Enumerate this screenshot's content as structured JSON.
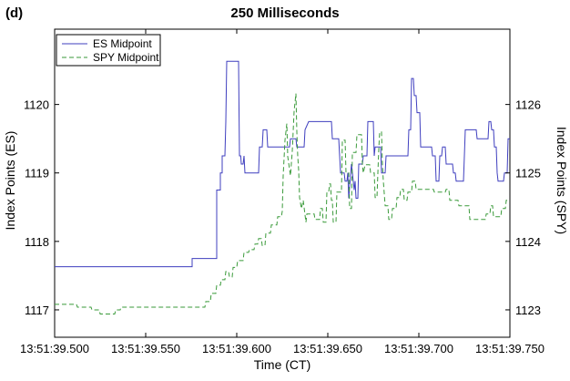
{
  "chart_data": {
    "type": "line",
    "panel_label": "(d)",
    "title": "250 Milliseconds",
    "xlabel": "Time (CT)",
    "ylabel_left": "Index Points (ES)",
    "ylabel_right": "Index Points (SPY)",
    "xlim": [
      13.5,
      13.75
    ],
    "ylim_left": [
      1116.6,
      1121.1
    ],
    "ylim_right": [
      1122.6,
      1127.1
    ],
    "x_ticks": [
      {
        "value": 13.5,
        "label": "13:51:39.500"
      },
      {
        "value": 13.55,
        "label": "13:51:39.550"
      },
      {
        "value": 13.6,
        "label": "13:51:39.600"
      },
      {
        "value": 13.65,
        "label": "13:51:39.650"
      },
      {
        "value": 13.7,
        "label": "13:51:39.700"
      },
      {
        "value": 13.75,
        "label": "13:51:39.750"
      }
    ],
    "y_ticks_left": [
      {
        "value": 1117,
        "label": "1117"
      },
      {
        "value": 1118,
        "label": "1118"
      },
      {
        "value": 1119,
        "label": "1119"
      },
      {
        "value": 1120,
        "label": "1120"
      }
    ],
    "y_ticks_right": [
      {
        "value": 1123,
        "label": "1123"
      },
      {
        "value": 1124,
        "label": "1124"
      },
      {
        "value": 1125,
        "label": "1125"
      },
      {
        "value": 1126,
        "label": "1126"
      }
    ],
    "legend_position": "top-left",
    "series": [
      {
        "name": "ES Midpoint",
        "axis": "left",
        "color": "#3f3fbf",
        "style": "solid",
        "points": [
          [
            13.5,
            1117.63
          ],
          [
            13.5755,
            1117.63
          ],
          [
            13.5755,
            1117.75
          ],
          [
            13.589,
            1117.75
          ],
          [
            13.589,
            1118.75
          ],
          [
            13.591,
            1118.75
          ],
          [
            13.591,
            1119.0
          ],
          [
            13.592,
            1119.0
          ],
          [
            13.592,
            1119.25
          ],
          [
            13.5935,
            1119.25
          ],
          [
            13.594,
            1119.75
          ],
          [
            13.5945,
            1120.63
          ],
          [
            13.601,
            1120.63
          ],
          [
            13.6015,
            1119.25
          ],
          [
            13.6022,
            1119.25
          ],
          [
            13.6025,
            1119.13
          ],
          [
            13.6035,
            1119.13
          ],
          [
            13.604,
            1119.25
          ],
          [
            13.6045,
            1119.0
          ],
          [
            13.612,
            1119.0
          ],
          [
            13.6125,
            1119.38
          ],
          [
            13.614,
            1119.38
          ],
          [
            13.6145,
            1119.63
          ],
          [
            13.6165,
            1119.63
          ],
          [
            13.617,
            1119.38
          ],
          [
            13.629,
            1119.38
          ],
          [
            13.6295,
            1119.5
          ],
          [
            13.6325,
            1119.5
          ],
          [
            13.633,
            1119.38
          ],
          [
            13.637,
            1119.38
          ],
          [
            13.6375,
            1119.63
          ],
          [
            13.6395,
            1119.75
          ],
          [
            13.652,
            1119.75
          ],
          [
            13.6525,
            1119.5
          ],
          [
            13.656,
            1119.5
          ],
          [
            13.6565,
            1119.25
          ],
          [
            13.657,
            1119.0
          ],
          [
            13.659,
            1119.0
          ],
          [
            13.6595,
            1118.88
          ],
          [
            13.6605,
            1118.88
          ],
          [
            13.661,
            1119.0
          ],
          [
            13.6615,
            1118.63
          ],
          [
            13.663,
            1119.13
          ],
          [
            13.664,
            1118.88
          ],
          [
            13.6645,
            1118.75
          ],
          [
            13.665,
            1118.88
          ],
          [
            13.6655,
            1118.63
          ],
          [
            13.6665,
            1118.63
          ],
          [
            13.667,
            1119.13
          ],
          [
            13.669,
            1119.13
          ],
          [
            13.6695,
            1119.25
          ],
          [
            13.6715,
            1119.25
          ],
          [
            13.672,
            1119.75
          ],
          [
            13.675,
            1119.75
          ],
          [
            13.6755,
            1119.25
          ],
          [
            13.676,
            1119.38
          ],
          [
            13.679,
            1119.38
          ],
          [
            13.6795,
            1119.0
          ],
          [
            13.6815,
            1119.0
          ],
          [
            13.682,
            1119.25
          ],
          [
            13.694,
            1119.25
          ],
          [
            13.6945,
            1119.63
          ],
          [
            13.6955,
            1119.63
          ],
          [
            13.696,
            1120.38
          ],
          [
            13.697,
            1120.38
          ],
          [
            13.6975,
            1120.13
          ],
          [
            13.6985,
            1120.13
          ],
          [
            13.699,
            1119.88
          ],
          [
            13.7005,
            1119.88
          ],
          [
            13.701,
            1119.38
          ],
          [
            13.707,
            1119.38
          ],
          [
            13.7075,
            1119.25
          ],
          [
            13.709,
            1119.25
          ],
          [
            13.7095,
            1118.88
          ],
          [
            13.711,
            1118.88
          ],
          [
            13.7115,
            1119.25
          ],
          [
            13.7125,
            1119.25
          ],
          [
            13.713,
            1119.38
          ],
          [
            13.7145,
            1119.38
          ],
          [
            13.715,
            1119.13
          ],
          [
            13.7185,
            1119.13
          ],
          [
            13.719,
            1119.0
          ],
          [
            13.72,
            1119.0
          ],
          [
            13.7205,
            1118.88
          ],
          [
            13.7245,
            1118.88
          ],
          [
            13.725,
            1119.25
          ],
          [
            13.7255,
            1119.63
          ],
          [
            13.7315,
            1119.63
          ],
          [
            13.732,
            1119.5
          ],
          [
            13.738,
            1119.5
          ],
          [
            13.7385,
            1119.75
          ],
          [
            13.7395,
            1119.75
          ],
          [
            13.74,
            1119.63
          ],
          [
            13.741,
            1119.63
          ],
          [
            13.7415,
            1119.38
          ],
          [
            13.7425,
            1119.38
          ],
          [
            13.743,
            1119.0
          ],
          [
            13.7435,
            1118.88
          ],
          [
            13.7465,
            1118.88
          ],
          [
            13.747,
            1119.0
          ],
          [
            13.7485,
            1119.0
          ],
          [
            13.749,
            1119.5
          ],
          [
            13.75,
            1119.5
          ]
        ]
      },
      {
        "name": "SPY Midpoint",
        "axis": "right",
        "color": "#3a9a3a",
        "style": "dashed",
        "points": [
          [
            13.5,
            1123.08
          ],
          [
            13.512,
            1123.08
          ],
          [
            13.5125,
            1123.04
          ],
          [
            13.52,
            1123.04
          ],
          [
            13.5205,
            1123.0
          ],
          [
            13.5245,
            1123.0
          ],
          [
            13.525,
            1122.94
          ],
          [
            13.533,
            1122.94
          ],
          [
            13.5335,
            1123.0
          ],
          [
            13.536,
            1123.0
          ],
          [
            13.5365,
            1123.04
          ],
          [
            13.5825,
            1123.04
          ],
          [
            13.583,
            1123.12
          ],
          [
            13.5855,
            1123.12
          ],
          [
            13.586,
            1123.24
          ],
          [
            13.5885,
            1123.24
          ],
          [
            13.589,
            1123.36
          ],
          [
            13.591,
            1123.36
          ],
          [
            13.5915,
            1123.44
          ],
          [
            13.5935,
            1123.44
          ],
          [
            13.594,
            1123.56
          ],
          [
            13.5955,
            1123.56
          ],
          [
            13.596,
            1123.48
          ],
          [
            13.5975,
            1123.48
          ],
          [
            13.598,
            1123.62
          ],
          [
            13.6,
            1123.62
          ],
          [
            13.6005,
            1123.72
          ],
          [
            13.6035,
            1123.72
          ],
          [
            13.604,
            1123.84
          ],
          [
            13.6065,
            1123.84
          ],
          [
            13.607,
            1123.88
          ],
          [
            13.6095,
            1123.88
          ],
          [
            13.61,
            1123.96
          ],
          [
            13.6115,
            1123.96
          ],
          [
            13.612,
            1124.04
          ],
          [
            13.6135,
            1124.04
          ],
          [
            13.614,
            1123.94
          ],
          [
            13.6155,
            1123.94
          ],
          [
            13.616,
            1124.12
          ],
          [
            13.6185,
            1124.12
          ],
          [
            13.619,
            1124.24
          ],
          [
            13.622,
            1124.24
          ],
          [
            13.6225,
            1124.36
          ],
          [
            13.6245,
            1124.36
          ],
          [
            13.625,
            1124.44
          ],
          [
            13.6255,
            1124.96
          ],
          [
            13.6265,
            1125.48
          ],
          [
            13.6275,
            1125.72
          ],
          [
            13.628,
            1125.24
          ],
          [
            13.6295,
            1124.96
          ],
          [
            13.6305,
            1125.32
          ],
          [
            13.6315,
            1125.9
          ],
          [
            13.6325,
            1126.16
          ],
          [
            13.633,
            1125.6
          ],
          [
            13.6335,
            1125.24
          ],
          [
            13.634,
            1125.04
          ],
          [
            13.6345,
            1124.64
          ],
          [
            13.6355,
            1124.48
          ],
          [
            13.6365,
            1124.6
          ],
          [
            13.638,
            1124.28
          ],
          [
            13.6385,
            1124.4
          ],
          [
            13.6425,
            1124.4
          ],
          [
            13.643,
            1124.32
          ],
          [
            13.6455,
            1124.32
          ],
          [
            13.646,
            1124.48
          ],
          [
            13.647,
            1124.48
          ],
          [
            13.6475,
            1124.28
          ],
          [
            13.649,
            1124.28
          ],
          [
            13.6495,
            1124.72
          ],
          [
            13.6505,
            1124.72
          ],
          [
            13.651,
            1124.84
          ],
          [
            13.6515,
            1124.84
          ],
          [
            13.652,
            1124.6
          ],
          [
            13.6525,
            1124.6
          ],
          [
            13.653,
            1124.28
          ],
          [
            13.6545,
            1124.28
          ],
          [
            13.655,
            1124.72
          ],
          [
            13.6575,
            1124.72
          ],
          [
            13.658,
            1125.48
          ],
          [
            13.6595,
            1125.48
          ],
          [
            13.66,
            1125.0
          ],
          [
            13.6615,
            1125.0
          ],
          [
            13.662,
            1124.48
          ],
          [
            13.663,
            1124.48
          ],
          [
            13.6635,
            1125.3
          ],
          [
            13.6655,
            1125.3
          ],
          [
            13.666,
            1125.56
          ],
          [
            13.6685,
            1125.56
          ],
          [
            13.669,
            1125.12
          ],
          [
            13.6695,
            1125.0
          ],
          [
            13.6705,
            1125.12
          ],
          [
            13.673,
            1125.12
          ],
          [
            13.6735,
            1125.0
          ],
          [
            13.6755,
            1125.0
          ],
          [
            13.676,
            1124.64
          ],
          [
            13.677,
            1124.64
          ],
          [
            13.6775,
            1125.0
          ],
          [
            13.678,
            1125.36
          ],
          [
            13.6785,
            1125.6
          ],
          [
            13.6795,
            1125.6
          ],
          [
            13.68,
            1125.12
          ],
          [
            13.6805,
            1124.88
          ],
          [
            13.6815,
            1124.52
          ],
          [
            13.683,
            1124.52
          ],
          [
            13.6835,
            1124.32
          ],
          [
            13.685,
            1124.32
          ],
          [
            13.6855,
            1124.48
          ],
          [
            13.6875,
            1124.48
          ],
          [
            13.688,
            1124.64
          ],
          [
            13.6895,
            1124.64
          ],
          [
            13.69,
            1124.76
          ],
          [
            13.6915,
            1124.76
          ],
          [
            13.692,
            1124.6
          ],
          [
            13.6935,
            1124.6
          ],
          [
            13.694,
            1124.72
          ],
          [
            13.696,
            1124.72
          ],
          [
            13.6965,
            1124.88
          ],
          [
            13.698,
            1124.88
          ],
          [
            13.6985,
            1124.76
          ],
          [
            13.708,
            1124.76
          ],
          [
            13.7085,
            1124.72
          ],
          [
            13.7145,
            1124.72
          ],
          [
            13.715,
            1124.76
          ],
          [
            13.7165,
            1124.76
          ],
          [
            13.717,
            1124.6
          ],
          [
            13.7215,
            1124.6
          ],
          [
            13.722,
            1124.52
          ],
          [
            13.7275,
            1124.52
          ],
          [
            13.728,
            1124.32
          ],
          [
            13.7365,
            1124.32
          ],
          [
            13.737,
            1124.4
          ],
          [
            13.739,
            1124.4
          ],
          [
            13.7395,
            1124.52
          ],
          [
            13.7405,
            1124.52
          ],
          [
            13.741,
            1124.36
          ],
          [
            13.745,
            1124.36
          ],
          [
            13.7455,
            1124.48
          ],
          [
            13.7475,
            1124.48
          ],
          [
            13.748,
            1124.6
          ],
          [
            13.75,
            1124.6
          ]
        ]
      }
    ]
  }
}
